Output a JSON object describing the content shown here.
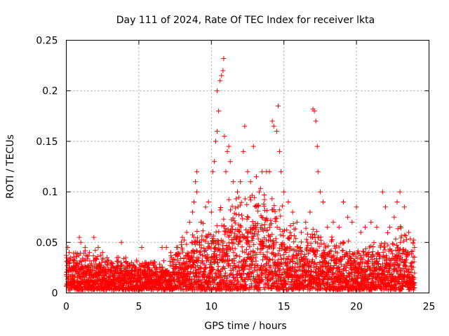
{
  "chart_data": {
    "type": "scatter",
    "title": "Day 111 of 2024, Rate Of TEC Index for receiver lkta",
    "xlabel": "GPS time / hours",
    "ylabel": "ROTI / TECUs",
    "xlim": [
      0,
      25
    ],
    "ylim": [
      0,
      0.25
    ],
    "xticks": [
      0,
      5,
      10,
      15,
      20,
      25
    ],
    "yticks": [
      0,
      0.05,
      0.1,
      0.15,
      0.2,
      0.25
    ],
    "xtick_labels": [
      "0",
      "5",
      "10",
      "15",
      "20",
      "25"
    ],
    "ytick_labels": [
      "0",
      "0.05",
      "0.1",
      "0.15",
      "0.2",
      "0.25"
    ],
    "grid": true,
    "marker": "+",
    "color": "#ff0000",
    "series": [
      {
        "name": "ROTI",
        "points": [
          [
            0.1,
            0.045
          ],
          [
            0.2,
            0.04
          ],
          [
            0.3,
            0.035
          ],
          [
            0.5,
            0.03
          ],
          [
            0.9,
            0.055
          ],
          [
            1.0,
            0.05
          ],
          [
            1.3,
            0.045
          ],
          [
            1.6,
            0.04
          ],
          [
            1.9,
            0.055
          ],
          [
            2.2,
            0.045
          ],
          [
            2.5,
            0.04
          ],
          [
            2.8,
            0.035
          ],
          [
            3.1,
            0.03
          ],
          [
            3.5,
            0.035
          ],
          [
            3.8,
            0.05
          ],
          [
            4.1,
            0.035
          ],
          [
            4.5,
            0.03
          ],
          [
            4.8,
            0.025
          ],
          [
            5.2,
            0.045
          ],
          [
            5.5,
            0.03
          ],
          [
            5.9,
            0.03
          ],
          [
            6.2,
            0.025
          ],
          [
            6.6,
            0.045
          ],
          [
            6.9,
            0.045
          ],
          [
            7.2,
            0.04
          ],
          [
            7.6,
            0.045
          ],
          [
            8.0,
            0.055
          ],
          [
            8.3,
            0.06
          ],
          [
            8.5,
            0.07
          ],
          [
            8.7,
            0.08
          ],
          [
            8.8,
            0.09
          ],
          [
            8.9,
            0.11
          ],
          [
            9.0,
            0.12
          ],
          [
            9.0,
            0.1
          ],
          [
            9.3,
            0.07
          ],
          [
            9.6,
            0.085
          ],
          [
            9.8,
            0.09
          ],
          [
            10.0,
            0.08
          ],
          [
            10.1,
            0.12
          ],
          [
            10.2,
            0.13
          ],
          [
            10.3,
            0.15
          ],
          [
            10.4,
            0.16
          ],
          [
            10.5,
            0.18
          ],
          [
            10.4,
            0.2
          ],
          [
            10.6,
            0.21
          ],
          [
            10.7,
            0.215
          ],
          [
            10.8,
            0.22
          ],
          [
            10.85,
            0.232
          ],
          [
            10.9,
            0.155
          ],
          [
            11.0,
            0.12
          ],
          [
            11.1,
            0.14
          ],
          [
            11.2,
            0.145
          ],
          [
            11.3,
            0.13
          ],
          [
            11.5,
            0.11
          ],
          [
            11.8,
            0.1
          ],
          [
            12.0,
            0.11
          ],
          [
            12.2,
            0.14
          ],
          [
            12.3,
            0.165
          ],
          [
            12.5,
            0.12
          ],
          [
            12.7,
            0.11
          ],
          [
            12.9,
            0.145
          ],
          [
            13.1,
            0.115
          ],
          [
            13.3,
            0.1
          ],
          [
            13.5,
            0.12
          ],
          [
            13.8,
            0.12
          ],
          [
            14.0,
            0.12
          ],
          [
            14.2,
            0.17
          ],
          [
            14.3,
            0.165
          ],
          [
            14.5,
            0.16
          ],
          [
            14.6,
            0.185
          ],
          [
            14.7,
            0.14
          ],
          [
            14.8,
            0.12
          ],
          [
            15.0,
            0.1
          ],
          [
            15.3,
            0.09
          ],
          [
            15.6,
            0.08
          ],
          [
            15.9,
            0.07
          ],
          [
            16.2,
            0.06
          ],
          [
            16.5,
            0.07
          ],
          [
            16.8,
            0.08
          ],
          [
            17.0,
            0.182
          ],
          [
            17.1,
            0.18
          ],
          [
            17.2,
            0.17
          ],
          [
            17.3,
            0.145
          ],
          [
            17.35,
            0.12
          ],
          [
            17.5,
            0.1
          ],
          [
            17.7,
            0.09
          ],
          [
            18.0,
            0.065
          ],
          [
            18.4,
            0.07
          ],
          [
            18.8,
            0.065
          ],
          [
            19.1,
            0.09
          ],
          [
            19.4,
            0.075
          ],
          [
            19.7,
            0.07
          ],
          [
            20.0,
            0.085
          ],
          [
            20.3,
            0.06
          ],
          [
            20.6,
            0.065
          ],
          [
            21.0,
            0.07
          ],
          [
            21.4,
            0.065
          ],
          [
            21.8,
            0.1
          ],
          [
            22.0,
            0.085
          ],
          [
            22.3,
            0.065
          ],
          [
            22.6,
            0.075
          ],
          [
            22.8,
            0.09
          ],
          [
            23.0,
            0.1
          ],
          [
            23.3,
            0.085
          ],
          [
            23.6,
            0.06
          ],
          [
            23.9,
            0.05
          ],
          [
            24.0,
            0.045
          ]
        ],
        "band": {
          "floor": 0.003,
          "profile_hours": [
            0,
            1,
            2,
            3,
            4,
            5,
            6,
            7,
            8,
            9,
            10,
            11,
            12,
            13,
            14,
            15,
            16,
            17,
            18,
            19,
            20,
            21,
            22,
            23,
            24
          ],
          "profile_upper": [
            0.035,
            0.035,
            0.035,
            0.03,
            0.03,
            0.028,
            0.026,
            0.03,
            0.045,
            0.055,
            0.06,
            0.075,
            0.085,
            0.09,
            0.085,
            0.07,
            0.05,
            0.055,
            0.045,
            0.045,
            0.04,
            0.04,
            0.05,
            0.06,
            0.04
          ]
        }
      }
    ]
  }
}
